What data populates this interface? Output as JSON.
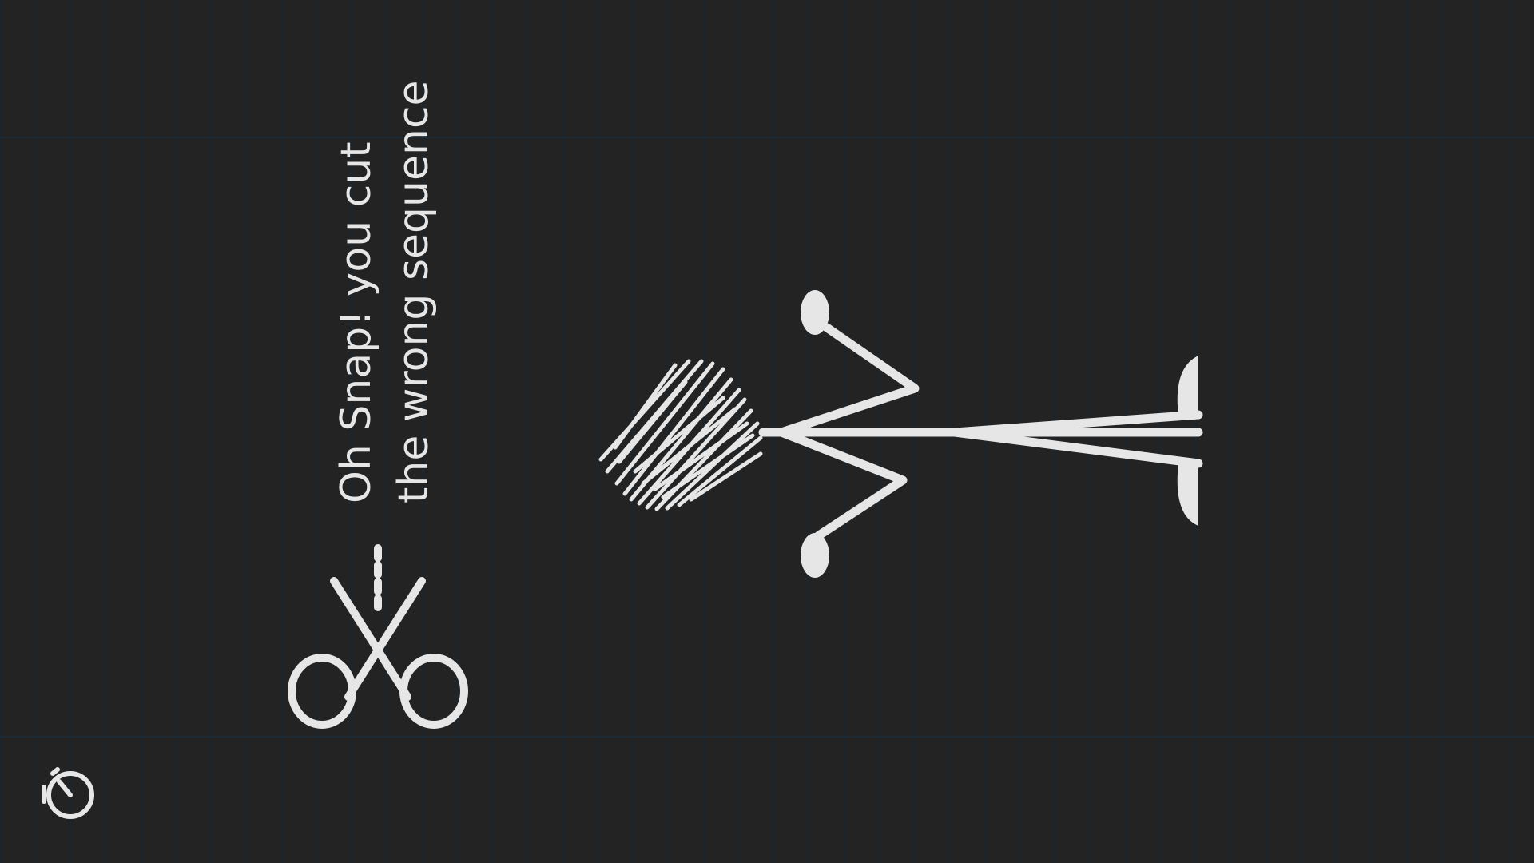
{
  "message": {
    "line1": "Oh Snap! you cut",
    "line2": "the wrong sequence"
  },
  "icons": {
    "scissors": "scissors-icon",
    "timer": "stopwatch-icon"
  },
  "colors": {
    "background": "#232323",
    "ink": "#e6e6e6",
    "ruled_lines": "#1a2a36"
  }
}
